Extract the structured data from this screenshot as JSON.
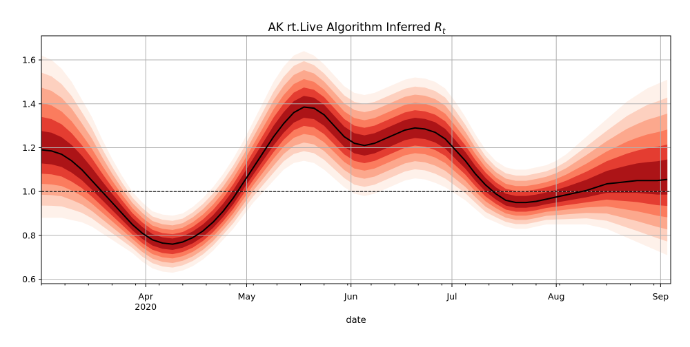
{
  "chart_data": {
    "type": "area",
    "title": "AK rt.Live Algorithm Inferred ",
    "title_symbol": "R",
    "title_subscript": "t",
    "xlabel": "date",
    "ylabel": "",
    "xlim": [
      "2020-03-01",
      "2020-09-04"
    ],
    "ylim": [
      0.58,
      1.71
    ],
    "grid": true,
    "y_ticks": [
      0.6,
      0.8,
      1.0,
      1.2,
      1.4,
      1.6
    ],
    "y_tick_labels": [
      "0.6",
      "0.8",
      "1.0",
      "1.2",
      "1.4",
      "1.6"
    ],
    "x_ticks": [
      {
        "date": "2020-04-01",
        "label": "Apr",
        "sublabel": "2020"
      },
      {
        "date": "2020-05-01",
        "label": "May",
        "sublabel": ""
      },
      {
        "date": "2020-06-01",
        "label": "Jun",
        "sublabel": ""
      },
      {
        "date": "2020-07-01",
        "label": "Jul",
        "sublabel": ""
      },
      {
        "date": "2020-08-01",
        "label": "Aug",
        "sublabel": ""
      },
      {
        "date": "2020-09-01",
        "label": "Sep",
        "sublabel": ""
      }
    ],
    "reference_line": {
      "y": 1.0,
      "style": "dashed",
      "color": "#000000"
    },
    "band_colors": [
      "#fee5d9",
      "#fcbba1",
      "#fc9272",
      "#fb6a4a",
      "#de2d26",
      "#a50f15"
    ],
    "median_color": "#000000",
    "series": [
      {
        "x": [
          "2020-03-01",
          "2020-03-04",
          "2020-03-07",
          "2020-03-10",
          "2020-03-13",
          "2020-03-16",
          "2020-03-19",
          "2020-03-22",
          "2020-03-25",
          "2020-03-28",
          "2020-03-31",
          "2020-04-03",
          "2020-04-06",
          "2020-04-09",
          "2020-04-12",
          "2020-04-15",
          "2020-04-18",
          "2020-04-21",
          "2020-04-24",
          "2020-04-27",
          "2020-04-30",
          "2020-05-03",
          "2020-05-06",
          "2020-05-09",
          "2020-05-12",
          "2020-05-15",
          "2020-05-18",
          "2020-05-21",
          "2020-05-24",
          "2020-05-27",
          "2020-05-30",
          "2020-06-02",
          "2020-06-05",
          "2020-06-08",
          "2020-06-11",
          "2020-06-14",
          "2020-06-17",
          "2020-06-20",
          "2020-06-23",
          "2020-06-26",
          "2020-06-29",
          "2020-07-02",
          "2020-07-05",
          "2020-07-08",
          "2020-07-11",
          "2020-07-14",
          "2020-07-17",
          "2020-07-20",
          "2020-07-23",
          "2020-07-26",
          "2020-07-29",
          "2020-08-01",
          "2020-08-04",
          "2020-08-07",
          "2020-08-10",
          "2020-08-13",
          "2020-08-16",
          "2020-08-19",
          "2020-08-22",
          "2020-08-25",
          "2020-08-28",
          "2020-08-31",
          "2020-09-03"
        ],
        "values": [
          1.19,
          1.185,
          1.17,
          1.14,
          1.1,
          1.05,
          1.0,
          0.95,
          0.9,
          0.85,
          0.81,
          0.78,
          0.765,
          0.76,
          0.77,
          0.79,
          0.82,
          0.86,
          0.91,
          0.97,
          1.04,
          1.11,
          1.18,
          1.25,
          1.31,
          1.36,
          1.385,
          1.38,
          1.35,
          1.3,
          1.25,
          1.22,
          1.21,
          1.22,
          1.24,
          1.26,
          1.28,
          1.29,
          1.285,
          1.27,
          1.24,
          1.19,
          1.14,
          1.08,
          1.03,
          0.99,
          0.96,
          0.95,
          0.95,
          0.955,
          0.965,
          0.975,
          0.985,
          0.995,
          1.005,
          1.02,
          1.035,
          1.04,
          1.045,
          1.05,
          1.05,
          1.05,
          1.055
        ],
        "lower_90": [
          1.06,
          1.04,
          1.02,
          0.99,
          0.96,
          0.92,
          0.88,
          0.84,
          0.8,
          0.76,
          0.72,
          0.69,
          0.675,
          0.67,
          0.68,
          0.7,
          0.74,
          0.78,
          0.83,
          0.89,
          0.95,
          1.02,
          1.08,
          1.14,
          1.19,
          1.23,
          1.25,
          1.24,
          1.21,
          1.16,
          1.11,
          1.08,
          1.07,
          1.08,
          1.1,
          1.12,
          1.14,
          1.15,
          1.145,
          1.13,
          1.1,
          1.07,
          1.03,
          0.98,
          0.93,
          0.9,
          0.88,
          0.87,
          0.87,
          0.88,
          0.89,
          0.89,
          0.895,
          0.9,
          0.905,
          0.91,
          0.91,
          0.9,
          0.89,
          0.88,
          0.87,
          0.86,
          0.85
        ],
        "upper_90": [
          1.32,
          1.32,
          1.31,
          1.29,
          1.25,
          1.2,
          1.13,
          1.07,
          1.01,
          0.95,
          0.9,
          0.87,
          0.855,
          0.85,
          0.86,
          0.88,
          0.91,
          0.95,
          1.0,
          1.06,
          1.12,
          1.2,
          1.28,
          1.36,
          1.43,
          1.49,
          1.52,
          1.51,
          1.48,
          1.43,
          1.38,
          1.35,
          1.34,
          1.35,
          1.37,
          1.39,
          1.41,
          1.42,
          1.415,
          1.4,
          1.37,
          1.32,
          1.26,
          1.19,
          1.13,
          1.08,
          1.05,
          1.04,
          1.04,
          1.04,
          1.05,
          1.06,
          1.08,
          1.1,
          1.12,
          1.14,
          1.16,
          1.18,
          1.2,
          1.22,
          1.24,
          1.25,
          1.26
        ],
        "lower_outer": [
          0.88,
          0.88,
          0.88,
          0.87,
          0.86,
          0.84,
          0.81,
          0.78,
          0.75,
          0.72,
          0.68,
          0.65,
          0.635,
          0.63,
          0.64,
          0.66,
          0.69,
          0.73,
          0.78,
          0.83,
          0.89,
          0.95,
          1.0,
          1.05,
          1.1,
          1.13,
          1.14,
          1.13,
          1.1,
          1.06,
          1.02,
          0.99,
          0.98,
          0.99,
          1.01,
          1.03,
          1.05,
          1.06,
          1.055,
          1.04,
          1.02,
          0.99,
          0.96,
          0.92,
          0.88,
          0.86,
          0.84,
          0.83,
          0.83,
          0.84,
          0.85,
          0.85,
          0.85,
          0.85,
          0.85,
          0.84,
          0.83,
          0.81,
          0.79,
          0.77,
          0.75,
          0.73,
          0.71
        ],
        "upper_outer": [
          1.62,
          1.6,
          1.56,
          1.5,
          1.42,
          1.34,
          1.24,
          1.15,
          1.07,
          1.0,
          0.95,
          0.91,
          0.895,
          0.89,
          0.9,
          0.93,
          0.97,
          1.02,
          1.08,
          1.15,
          1.23,
          1.32,
          1.41,
          1.5,
          1.57,
          1.62,
          1.64,
          1.62,
          1.58,
          1.53,
          1.48,
          1.45,
          1.44,
          1.45,
          1.47,
          1.49,
          1.51,
          1.52,
          1.515,
          1.5,
          1.47,
          1.41,
          1.34,
          1.26,
          1.19,
          1.14,
          1.11,
          1.1,
          1.1,
          1.11,
          1.12,
          1.14,
          1.17,
          1.21,
          1.25,
          1.29,
          1.33,
          1.37,
          1.41,
          1.44,
          1.47,
          1.49,
          1.51
        ]
      }
    ]
  }
}
